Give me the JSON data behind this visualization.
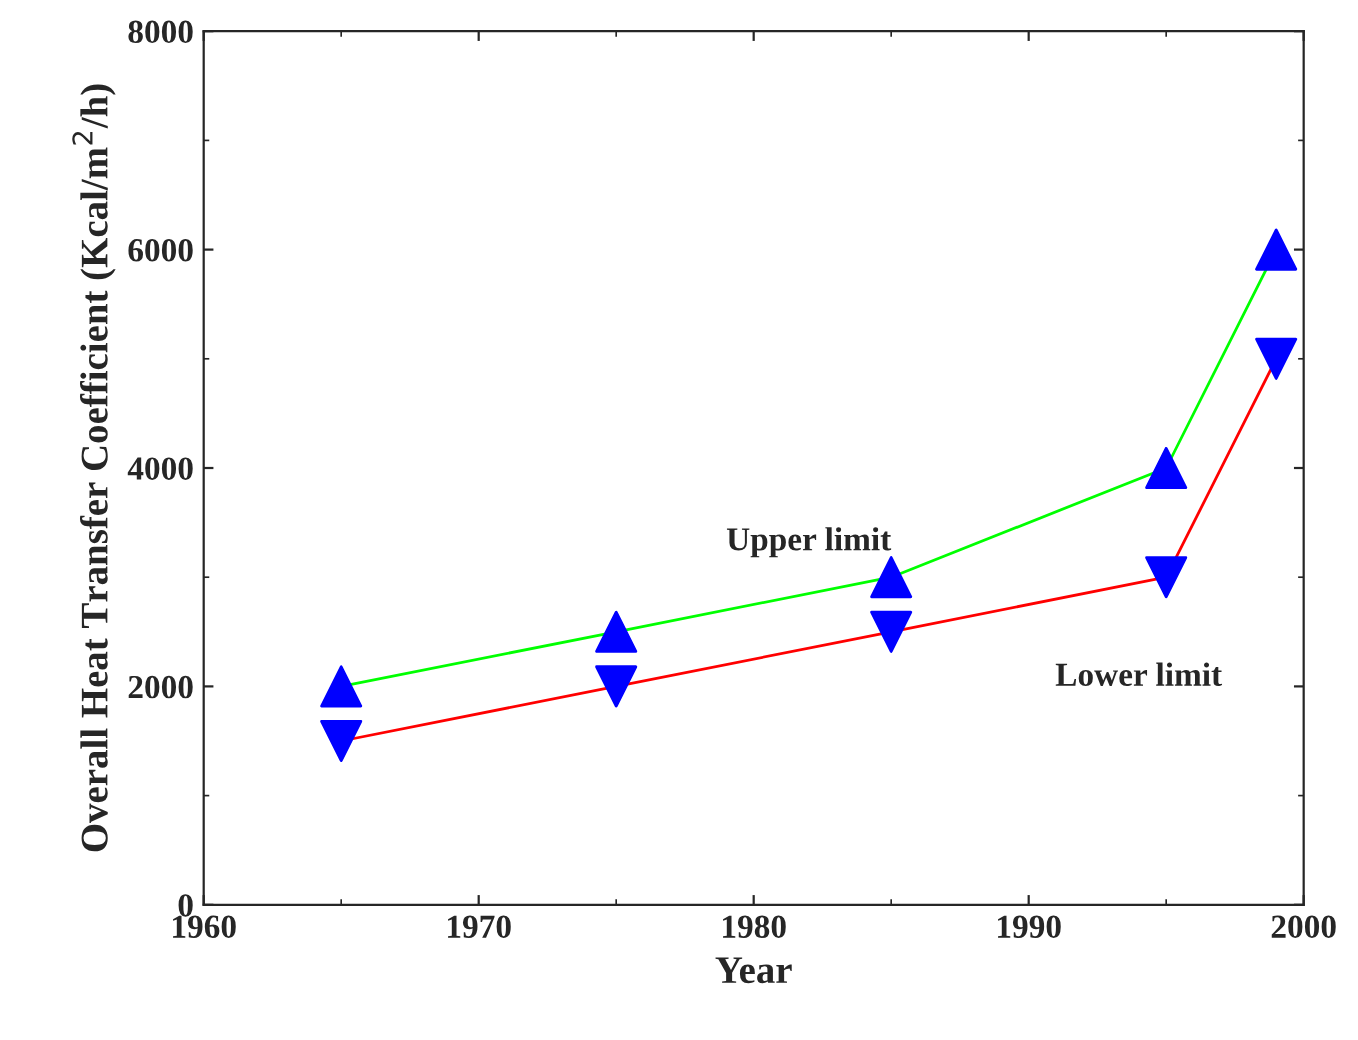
{
  "chart_data": {
    "type": "line",
    "xlabel": "Year",
    "ylabel": "Overall Heat Transfer Coefficient (Kcal/m$^{2}$/h)",
    "x": [
      1965,
      1975,
      1985,
      1995,
      1999
    ],
    "series": [
      {
        "name": "Upper limit",
        "color": "#00ff00",
        "marker": "triangle",
        "colors": [
          "#0000ff",
          "#0000ff",
          "#0000ff",
          "#0000ff",
          "#0000ff"
        ],
        "values": [
          2000,
          2500,
          3000,
          4000,
          6000
        ]
      },
      {
        "name": "Lower limit",
        "color": "#ff0000",
        "marker": "triangle_down",
        "colors": [
          "#0000ff",
          "#0000ff",
          "#0000ff",
          "#0000ff",
          "#0000ff"
        ],
        "values": [
          1500,
          2000,
          2500,
          3000,
          5000
        ]
      }
    ],
    "xlim": [
      1960,
      2000
    ],
    "xticks": [
      1960,
      1970,
      1980,
      1990,
      2000
    ],
    "ylim": [
      0,
      8000
    ],
    "yticks": [
      0,
      2000,
      4000,
      6000,
      8000
    ],
    "grid": false,
    "legend": false,
    "line_style": "solid"
  }
}
